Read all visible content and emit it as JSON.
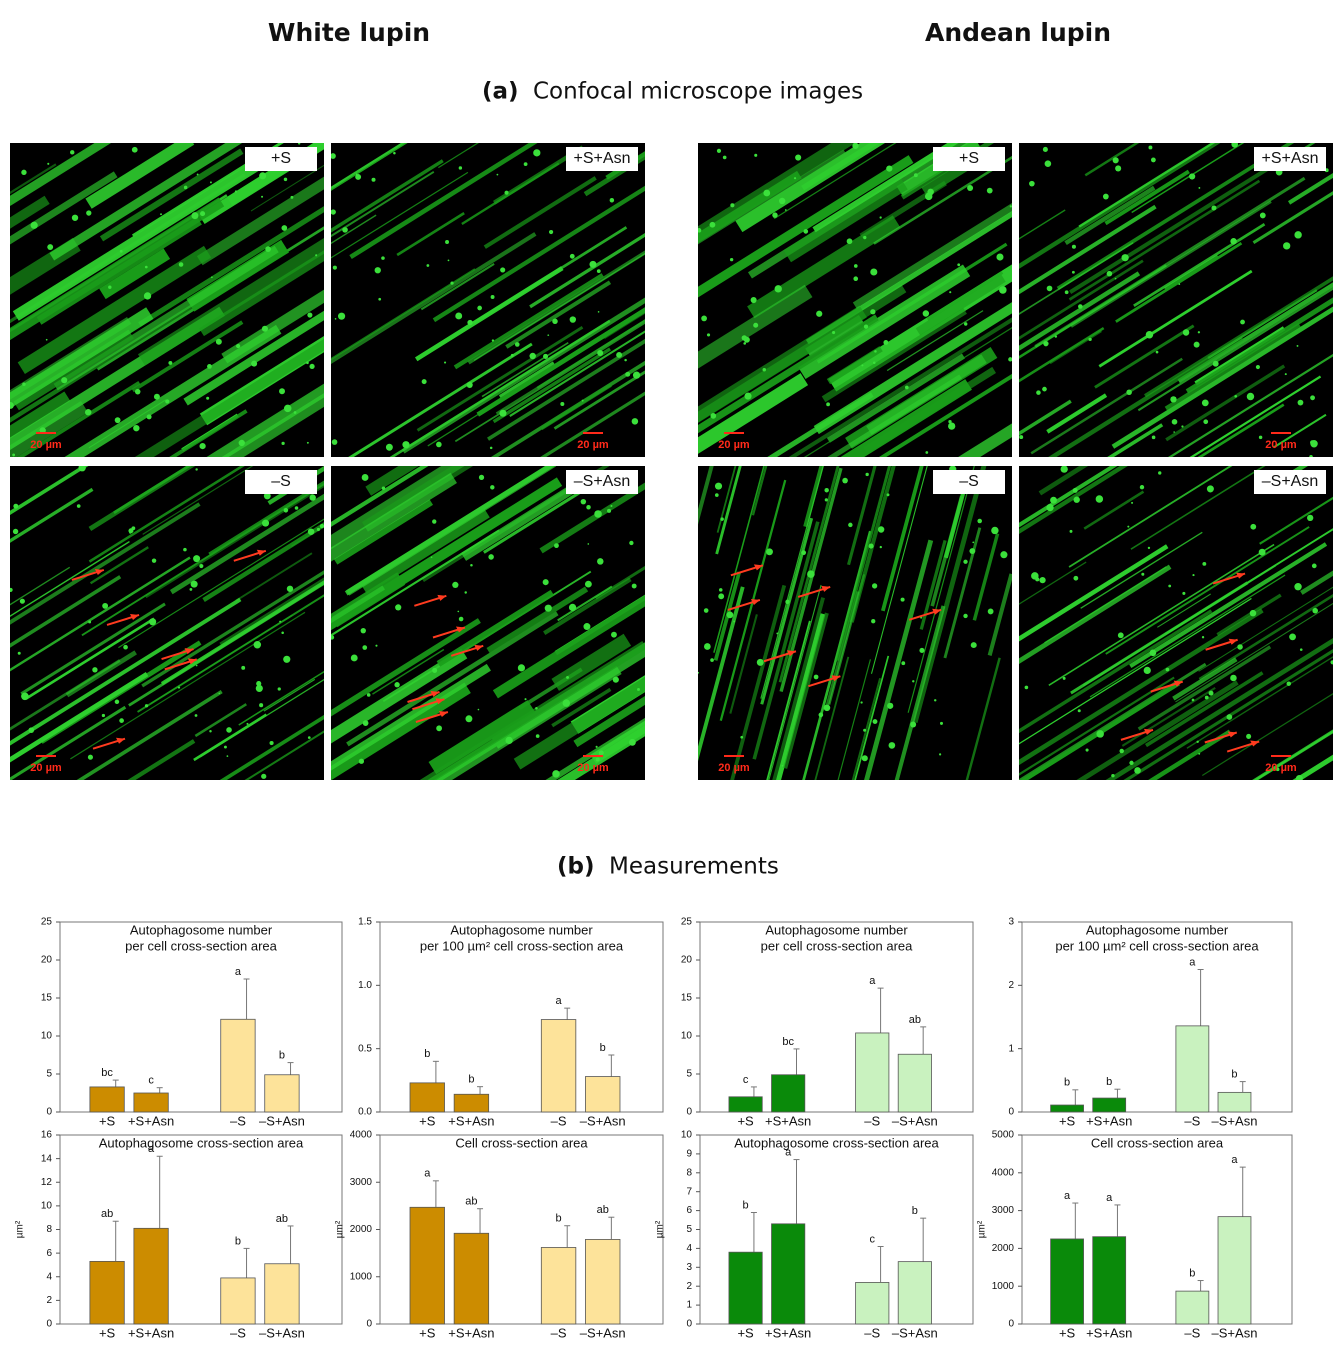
{
  "header": {
    "left": "White lupin",
    "right": "Andean lupin",
    "section_a_letter": "(a)",
    "section_a": "Confocal microscope images",
    "section_b_letter": "(b)",
    "section_b": "Measurements"
  },
  "images": [
    {
      "label": "+S",
      "scale": "20 µm"
    },
    {
      "label": "+S+Asn",
      "scale": "20 µm"
    },
    {
      "label": "–S",
      "scale": "20 µm"
    },
    {
      "label": "–S+Asn",
      "scale": "20 µm"
    },
    {
      "label": "+S",
      "scale": "20 µm"
    },
    {
      "label": "+S+Asn",
      "scale": "20 µm"
    },
    {
      "label": "–S",
      "scale": "20 µm"
    },
    {
      "label": "–S+Asn",
      "scale": "20 µm"
    }
  ],
  "chart_data": [
    {
      "type": "bar",
      "title": [
        "Autophagosome number",
        "per cell cross-section area"
      ],
      "categories": [
        "+S",
        "+S+Asn",
        "–S",
        "–S+Asn"
      ],
      "values": [
        3.3,
        2.5,
        12.2,
        4.9
      ],
      "errors": [
        0.9,
        0.7,
        5.3,
        1.6
      ],
      "letters": [
        "bc",
        "c",
        "a",
        "b"
      ],
      "colors": [
        "#cc8c00",
        "#cc8c00",
        "#fde39a",
        "#fde39a"
      ],
      "ylim": [
        0,
        25
      ],
      "yticks": [
        0,
        5,
        10,
        15,
        20,
        25
      ]
    },
    {
      "type": "bar",
      "title": [
        "Autophagosome number",
        "per 100 µm² cell cross-section area"
      ],
      "categories": [
        "+S",
        "+S+Asn",
        "–S",
        "–S+Asn"
      ],
      "values": [
        0.23,
        0.14,
        0.73,
        0.28
      ],
      "errors": [
        0.17,
        0.06,
        0.09,
        0.17
      ],
      "letters": [
        "b",
        "b",
        "a",
        "b"
      ],
      "colors": [
        "#cc8c00",
        "#cc8c00",
        "#fde39a",
        "#fde39a"
      ],
      "ylim": [
        0,
        1.5
      ],
      "yticks": [
        {
          "value": 0,
          "label": "0.0"
        },
        0.5,
        {
          "value": 1,
          "label": "1.0"
        },
        1.5
      ]
    },
    {
      "type": "bar",
      "title": [
        "Autophagosome number",
        "per cell cross-section area"
      ],
      "categories": [
        "+S",
        "+S+Asn",
        "–S",
        "–S+Asn"
      ],
      "values": [
        2.0,
        4.9,
        10.4,
        7.6
      ],
      "errors": [
        1.3,
        3.4,
        5.9,
        3.6
      ],
      "letters": [
        "c",
        "bc",
        "a",
        "ab"
      ],
      "colors": [
        "#0a8a0a",
        "#0a8a0a",
        "#c9f2bf",
        "#c9f2bf"
      ],
      "ylim": [
        0,
        25
      ],
      "yticks": [
        0,
        5,
        10,
        15,
        20,
        25
      ]
    },
    {
      "type": "bar",
      "title": [
        "Autophagosome number",
        "per 100 µm² cell cross-section area"
      ],
      "categories": [
        "+S",
        "+S+Asn",
        "–S",
        "–S+Asn"
      ],
      "values": [
        0.11,
        0.22,
        1.36,
        0.31
      ],
      "errors": [
        0.24,
        0.14,
        0.89,
        0.17
      ],
      "letters": [
        "b",
        "b",
        "a",
        "b"
      ],
      "colors": [
        "#0a8a0a",
        "#0a8a0a",
        "#c9f2bf",
        "#c9f2bf"
      ],
      "ylim": [
        0,
        3
      ],
      "yticks": [
        0,
        1,
        2,
        3
      ]
    },
    {
      "type": "bar",
      "title": [
        "Autophagosome cross-section area"
      ],
      "ylabel": "µm²",
      "categories": [
        "+S",
        "+S+Asn",
        "–S",
        "–S+Asn"
      ],
      "values": [
        5.3,
        8.1,
        3.9,
        5.1
      ],
      "errors": [
        3.4,
        6.1,
        2.5,
        3.2
      ],
      "letters": [
        "ab",
        "a",
        "b",
        "ab"
      ],
      "colors": [
        "#cc8c00",
        "#cc8c00",
        "#fde39a",
        "#fde39a"
      ],
      "ylim": [
        0,
        16
      ],
      "yticks": [
        0,
        2,
        4,
        6,
        8,
        10,
        12,
        14,
        16
      ]
    },
    {
      "type": "bar",
      "title": [
        "Cell cross-section area"
      ],
      "ylabel": "µm²",
      "categories": [
        "+S",
        "+S+Asn",
        "–S",
        "–S+Asn"
      ],
      "values": [
        2470,
        1920,
        1620,
        1790
      ],
      "errors": [
        560,
        520,
        460,
        470
      ],
      "letters": [
        "a",
        "ab",
        "b",
        "ab"
      ],
      "colors": [
        "#cc8c00",
        "#cc8c00",
        "#fde39a",
        "#fde39a"
      ],
      "ylim": [
        0,
        4000
      ],
      "yticks": [
        0,
        1000,
        2000,
        3000,
        4000
      ]
    },
    {
      "type": "bar",
      "title": [
        "Autophagosome cross-section area"
      ],
      "ylabel": "µm²",
      "categories": [
        "+S",
        "+S+Asn",
        "–S",
        "–S+Asn"
      ],
      "values": [
        3.8,
        5.3,
        2.2,
        3.3
      ],
      "errors": [
        2.1,
        3.4,
        1.9,
        2.3
      ],
      "letters": [
        "b",
        "a",
        "c",
        "b"
      ],
      "colors": [
        "#0a8a0a",
        "#0a8a0a",
        "#c9f2bf",
        "#c9f2bf"
      ],
      "ylim": [
        0,
        10
      ],
      "yticks": [
        0,
        1,
        2,
        3,
        4,
        5,
        6,
        7,
        8,
        9,
        10
      ]
    },
    {
      "type": "bar",
      "title": [
        "Cell cross-section area"
      ],
      "ylabel": "µm²",
      "categories": [
        "+S",
        "+S+Asn",
        "–S",
        "–S+Asn"
      ],
      "values": [
        2250,
        2310,
        870,
        2840
      ],
      "errors": [
        950,
        840,
        280,
        1310
      ],
      "letters": [
        "a",
        "a",
        "b",
        "a"
      ],
      "colors": [
        "#0a8a0a",
        "#0a8a0a",
        "#c9f2bf",
        "#c9f2bf"
      ],
      "ylim": [
        0,
        5000
      ],
      "yticks": [
        0,
        1000,
        2000,
        3000,
        4000,
        5000
      ]
    }
  ]
}
